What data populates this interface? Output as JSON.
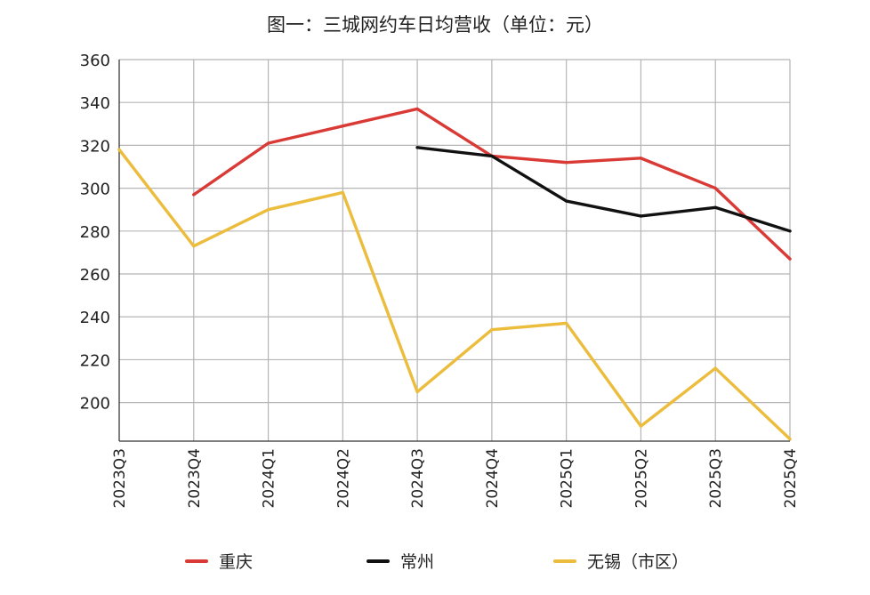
{
  "chart_data": {
    "type": "line",
    "title": "图一：三城网约车日均营收（单位：元）",
    "categories": [
      "2023Q3",
      "2023Q4",
      "2024Q1",
      "2024Q2",
      "2024Q3",
      "2024Q4",
      "2025Q1",
      "2025Q2",
      "2025Q3",
      "2025Q4"
    ],
    "ylim": [
      182,
      360
    ],
    "yticks": [
      200,
      220,
      240,
      260,
      280,
      300,
      320,
      340,
      360
    ],
    "grid": true,
    "legend_position": "bottom",
    "series": [
      {
        "name": "重庆",
        "color": "#d93a36",
        "values": [
          null,
          297,
          321,
          329,
          337,
          315,
          312,
          314,
          300,
          267
        ]
      },
      {
        "name": "常州",
        "color": "#111111",
        "values": [
          null,
          null,
          null,
          null,
          319,
          315,
          294,
          287,
          291,
          280
        ]
      },
      {
        "name": "无锡（市区）",
        "color": "#ecbc3c",
        "values": [
          318,
          273,
          290,
          298,
          205,
          234,
          237,
          189,
          216,
          183
        ]
      }
    ]
  }
}
